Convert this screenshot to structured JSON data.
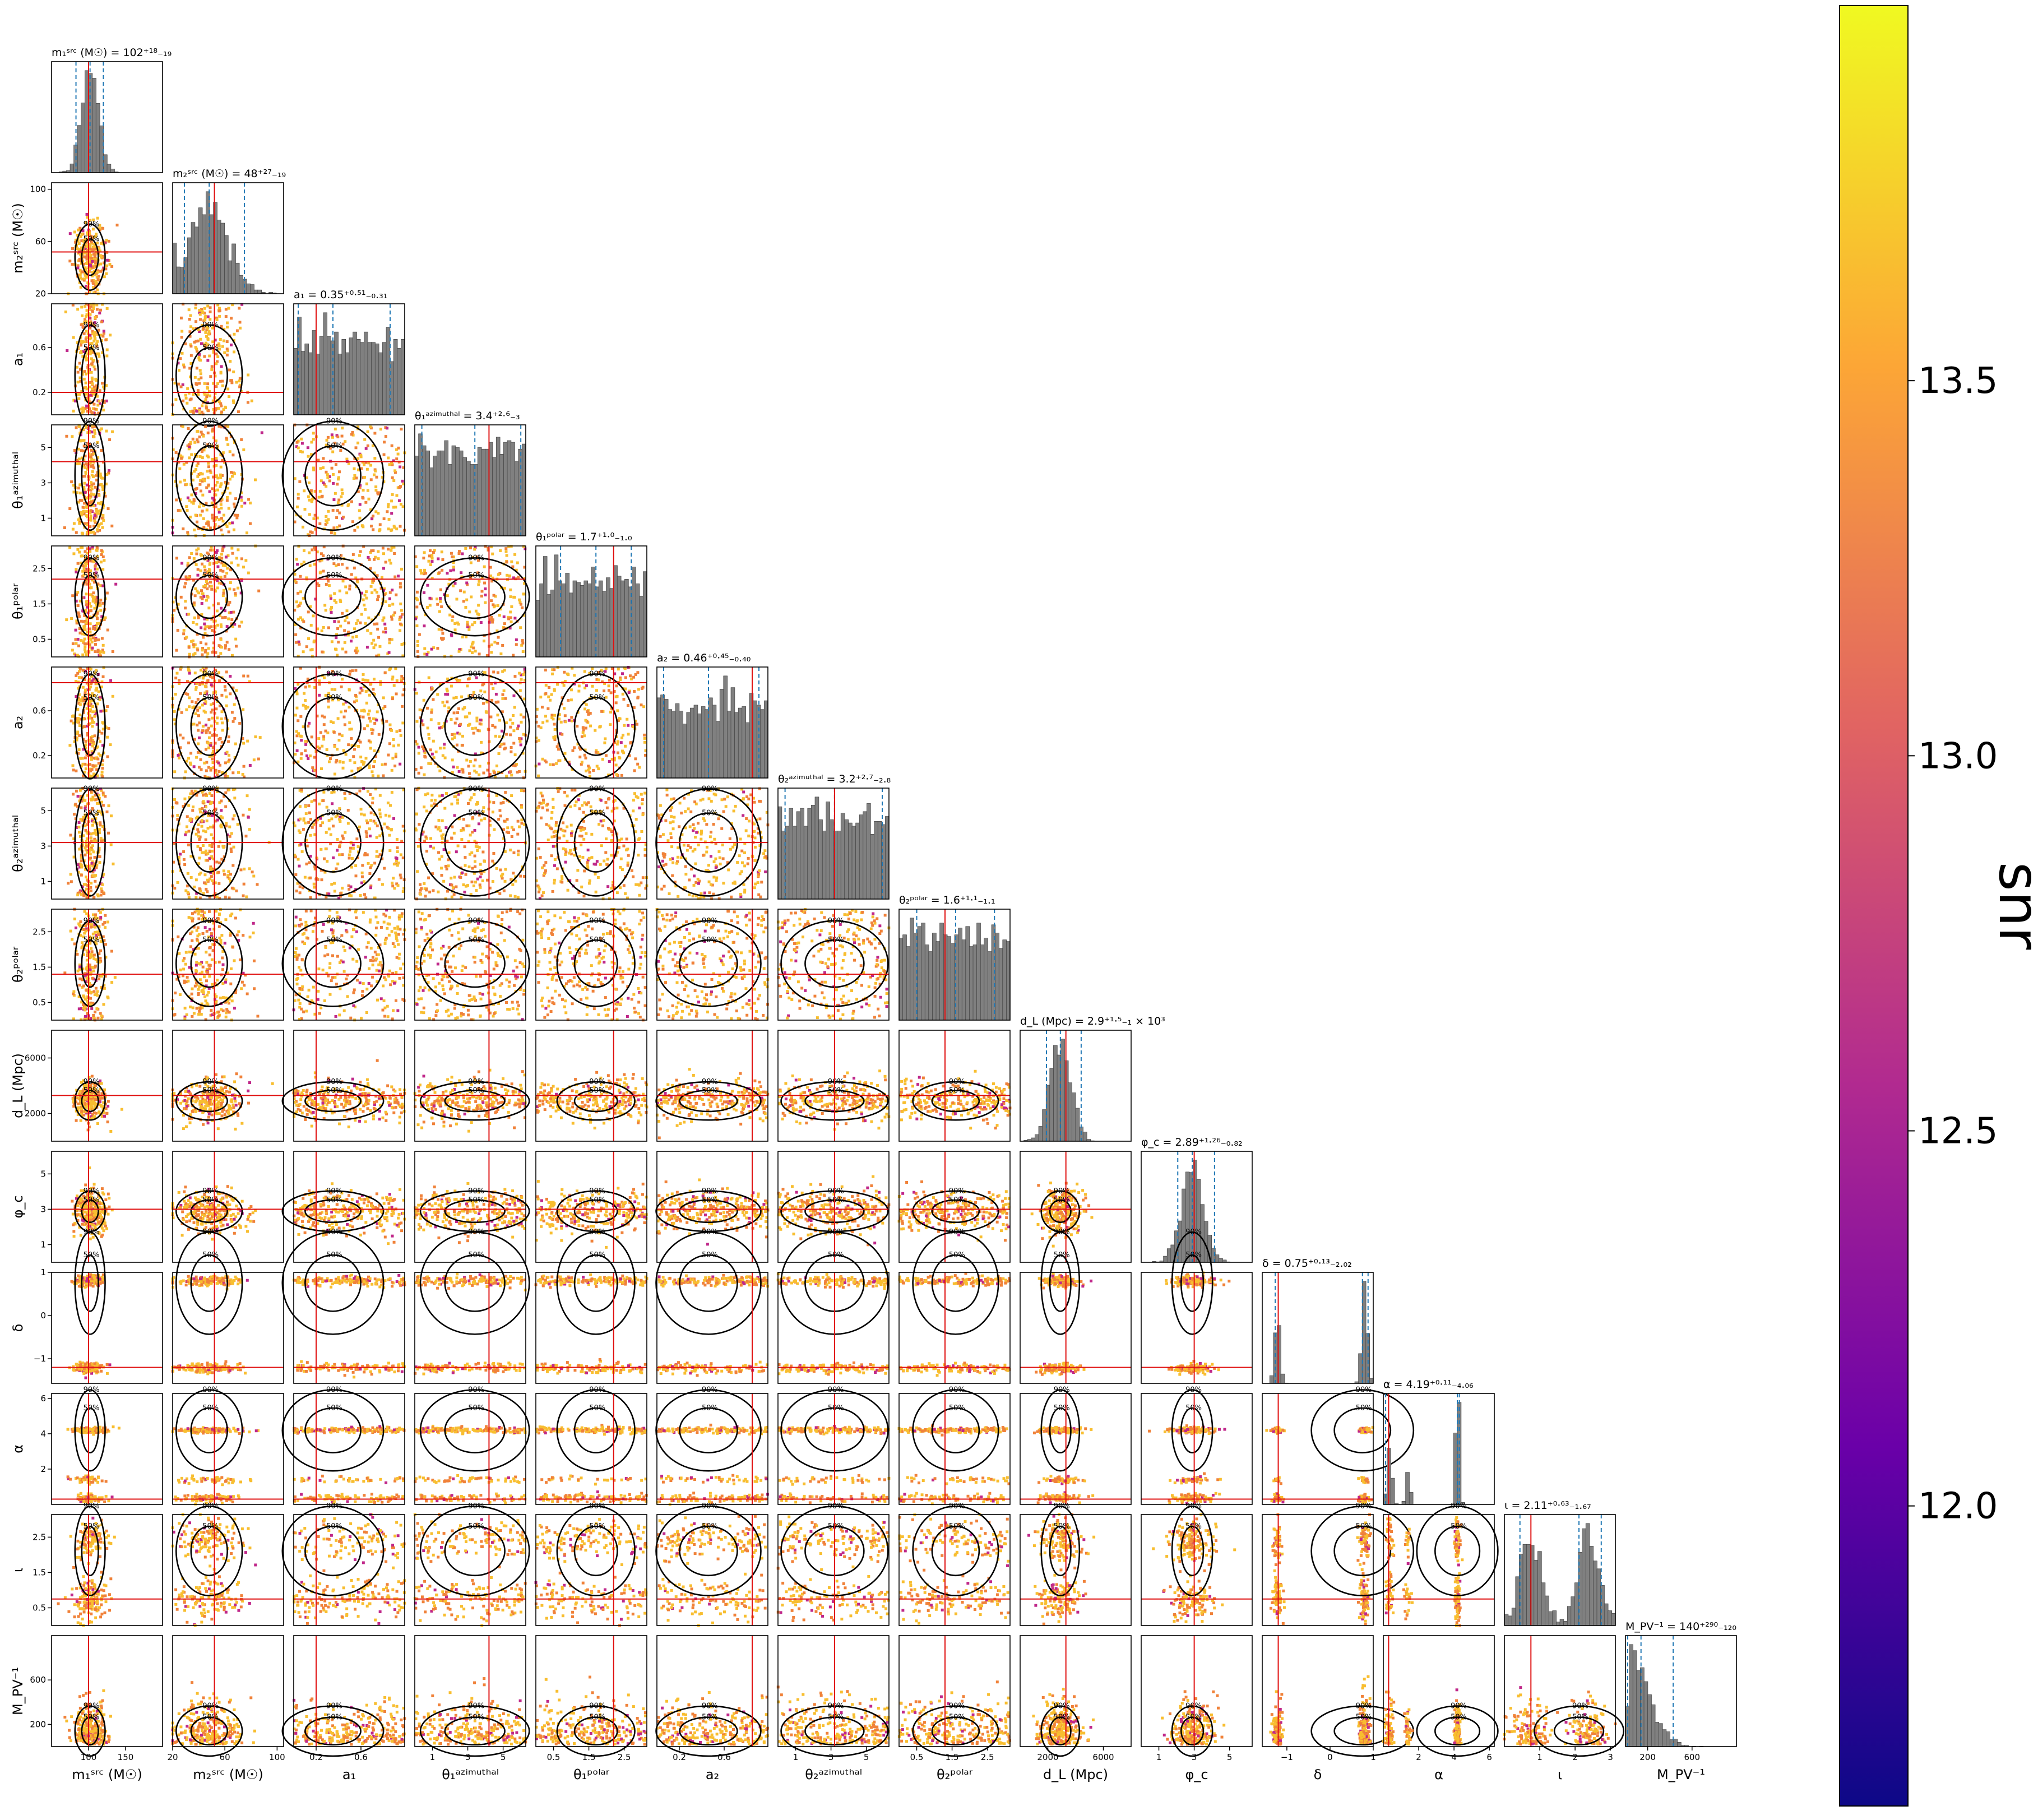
{
  "chart_data": {
    "type": "scatter",
    "subtype": "corner-plot",
    "parameters": [
      {
        "key": "m1",
        "axis_label": "m₁ˢʳᶜ (M☉)",
        "title": "m₁ˢʳᶜ (M☉) = 102⁺¹⁸₋₁₉",
        "median": 102,
        "low": 83,
        "high": 120,
        "truth": 100,
        "range": [
          50,
          200
        ],
        "ticks": [
          100,
          150
        ],
        "tick_labels": [
          "100",
          "150"
        ]
      },
      {
        "key": "m2",
        "axis_label": "m₂ˢʳᶜ (M☉)",
        "title": "m₂ˢʳᶜ (M☉) = 48⁺²⁷₋₁₉",
        "median": 48,
        "low": 29,
        "high": 75,
        "truth": 52,
        "range": [
          20,
          105
        ],
        "ticks": [
          20,
          60,
          100
        ],
        "tick_labels": [
          "20",
          "60",
          "100"
        ]
      },
      {
        "key": "a1",
        "axis_label": "a₁",
        "title": "a₁ = 0.35⁺⁰·⁵¹₋₀.₃₁",
        "median": 0.35,
        "low": 0.04,
        "high": 0.86,
        "truth": 0.2,
        "range": [
          0,
          0.99
        ],
        "ticks": [
          0.2,
          0.6
        ],
        "tick_labels": [
          "0.2",
          "0.6"
        ]
      },
      {
        "key": "th1az",
        "axis_label": "θ₁ᵃᶻⁱᵐᵘᵗʰᵃˡ",
        "title": "θ₁ᵃᶻⁱᵐᵘᵗʰᵃˡ = 3.4⁺²·⁶₋₃",
        "median": 3.4,
        "low": 0.4,
        "high": 6.0,
        "truth": 4.2,
        "range": [
          0,
          6.28
        ],
        "ticks": [
          1,
          3,
          5
        ],
        "tick_labels": [
          "1",
          "3",
          "5"
        ]
      },
      {
        "key": "th1pol",
        "axis_label": "θ₁ᵖᵒˡᵃʳ",
        "title": "θ₁ᵖᵒˡᵃʳ = 1.7⁺¹·⁰₋₁.₀",
        "median": 1.7,
        "low": 0.7,
        "high": 2.7,
        "truth": 2.2,
        "range": [
          0,
          3.14
        ],
        "ticks": [
          0.5,
          1.5,
          2.5
        ],
        "tick_labels": [
          "0.5",
          "1.5",
          "2.5"
        ]
      },
      {
        "key": "a2",
        "axis_label": "a₂",
        "title": "a₂ = 0.46⁺⁰·⁴⁵₋₀.₄₀",
        "median": 0.46,
        "low": 0.06,
        "high": 0.91,
        "truth": 0.85,
        "range": [
          0,
          0.99
        ],
        "ticks": [
          0.2,
          0.6
        ],
        "tick_labels": [
          "0.2",
          "0.6"
        ]
      },
      {
        "key": "th2az",
        "axis_label": "θ₂ᵃᶻⁱᵐᵘᵗʰᵃˡ",
        "title": "θ₂ᵃᶻⁱᵐᵘᵗʰᵃˡ = 3.2⁺²·⁷₋₂.₈",
        "median": 3.2,
        "low": 0.4,
        "high": 5.9,
        "truth": 3.2,
        "range": [
          0,
          6.28
        ],
        "ticks": [
          1,
          3,
          5
        ],
        "tick_labels": [
          "1",
          "3",
          "5"
        ]
      },
      {
        "key": "th2pol",
        "axis_label": "θ₂ᵖᵒˡᵃʳ",
        "title": "θ₂ᵖᵒˡᵃʳ = 1.6⁺¹·¹₋₁.₁",
        "median": 1.6,
        "low": 0.5,
        "high": 2.7,
        "truth": 1.3,
        "range": [
          0,
          3.14
        ],
        "ticks": [
          0.5,
          1.5,
          2.5
        ],
        "tick_labels": [
          "0.5",
          "1.5",
          "2.5"
        ]
      },
      {
        "key": "dL",
        "axis_label": "d_L (Mpc)",
        "title": "d_L (Mpc) = 2.9⁺¹·⁵₋₁ × 10³",
        "median": 2900,
        "low": 1900,
        "high": 4400,
        "truth": 3300,
        "range": [
          0,
          8000
        ],
        "ticks": [
          2000,
          6000
        ],
        "tick_labels": [
          "2000",
          "6000"
        ]
      },
      {
        "key": "phic",
        "axis_label": "φ_c",
        "title": "φ_c = 2.89⁺¹·²⁶₋₀.₈₂",
        "median": 2.89,
        "low": 2.07,
        "high": 4.15,
        "truth": 3.0,
        "range": [
          0,
          6.28
        ],
        "ticks": [
          1,
          3,
          5
        ],
        "tick_labels": [
          "1",
          "3",
          "5"
        ]
      },
      {
        "key": "delta",
        "axis_label": "δ",
        "title": "δ = 0.75⁺⁰·¹³₋₂.₀₂",
        "median": 0.75,
        "low": -1.27,
        "high": 0.88,
        "truth": -1.2,
        "range": [
          -1.57,
          1.0
        ],
        "ticks": [
          -1,
          0,
          1
        ],
        "tick_labels": [
          "−1",
          "0",
          "1"
        ]
      },
      {
        "key": "alpha",
        "axis_label": "α",
        "title": "α = 4.19⁺⁰·¹¹₋₄.₀₆",
        "median": 4.19,
        "low": 0.13,
        "high": 4.3,
        "truth": 0.3,
        "range": [
          0,
          6.28
        ],
        "ticks": [
          2,
          4,
          6
        ],
        "tick_labels": [
          "2",
          "4",
          "6"
        ]
      },
      {
        "key": "iota",
        "axis_label": "ι",
        "title": "ι = 2.11⁺⁰·⁶³₋₁.₆₇",
        "median": 2.11,
        "low": 0.44,
        "high": 2.74,
        "truth": 0.75,
        "range": [
          0,
          3.14
        ],
        "ticks": [
          1,
          2,
          3
        ],
        "tick_labels": [
          "1",
          "2",
          "3"
        ]
      },
      {
        "key": "mpv",
        "axis_label": "M_PV⁻¹",
        "title": "M_PV⁻¹ = 140⁺²⁹⁰₋₁₂₀",
        "median": 140,
        "low": 20,
        "high": 430,
        "truth": null,
        "range": [
          0,
          1000
        ],
        "ticks": [
          200,
          600
        ],
        "tick_labels": [
          "200",
          "600"
        ]
      }
    ],
    "y_axis_ticks": {
      "m2": {
        "ticks": [
          20,
          60,
          100
        ],
        "labels": [
          "20",
          "60",
          "100"
        ]
      },
      "a1": {
        "ticks": [
          0.2,
          0.6
        ],
        "labels": [
          "0.2",
          "0.6"
        ]
      },
      "th1az": {
        "ticks": [
          1,
          3,
          5
        ],
        "labels": [
          "1",
          "3",
          "5"
        ]
      },
      "th1pol": {
        "ticks": [
          0.5,
          1.5,
          2.5
        ],
        "labels": [
          "0.5",
          "1.5",
          "2.5"
        ]
      },
      "a2": {
        "ticks": [
          0.2,
          0.6
        ],
        "labels": [
          "0.2",
          "0.6"
        ]
      },
      "th2az": {
        "ticks": [
          1,
          3,
          5
        ],
        "labels": [
          "1",
          "3",
          "5"
        ]
      },
      "th2pol": {
        "ticks": [
          0.5,
          1.5,
          2.5
        ],
        "labels": [
          "0.5",
          "1.5",
          "2.5"
        ]
      },
      "dL": {
        "ticks": [
          2000,
          6000
        ],
        "labels": [
          "2000",
          "6000"
        ]
      },
      "phic": {
        "ticks": [
          1,
          3,
          5
        ],
        "labels": [
          "1",
          "3",
          "5"
        ]
      },
      "delta": {
        "ticks": [
          -1,
          0,
          1
        ],
        "labels": [
          "−1",
          "0",
          "1"
        ]
      },
      "alpha": {
        "ticks": [
          2,
          4,
          6
        ],
        "labels": [
          "2",
          "4",
          "6"
        ]
      },
      "iota": {
        "ticks": [
          0.5,
          1.5,
          2.5
        ],
        "labels": [
          "0.5",
          "1.5",
          "2.5"
        ]
      },
      "mpv": {
        "ticks": [
          200,
          600
        ],
        "labels": [
          "200",
          "600"
        ]
      }
    },
    "contour_levels": [
      "50%",
      "90%"
    ],
    "colorbar": {
      "label": "snr",
      "ticks": [
        12.0,
        12.5,
        13.0,
        13.5
      ],
      "tick_labels": [
        "12.0",
        "12.5",
        "13.0",
        "13.5"
      ],
      "range": [
        11.6,
        14.0
      ],
      "colormap": [
        "#0d0887",
        "#6a00a8",
        "#b12a90",
        "#e16462",
        "#fca636",
        "#f0f921"
      ]
    },
    "grid": false
  },
  "colors": {
    "histogram": "#808080",
    "quantile_lines": "#1f77b4",
    "truth_lines": "#e01010",
    "contours": "#000000",
    "scatter_low": "#c0288a",
    "scatter_mid": "#f0823a",
    "scatter_high": "#f8be30"
  }
}
